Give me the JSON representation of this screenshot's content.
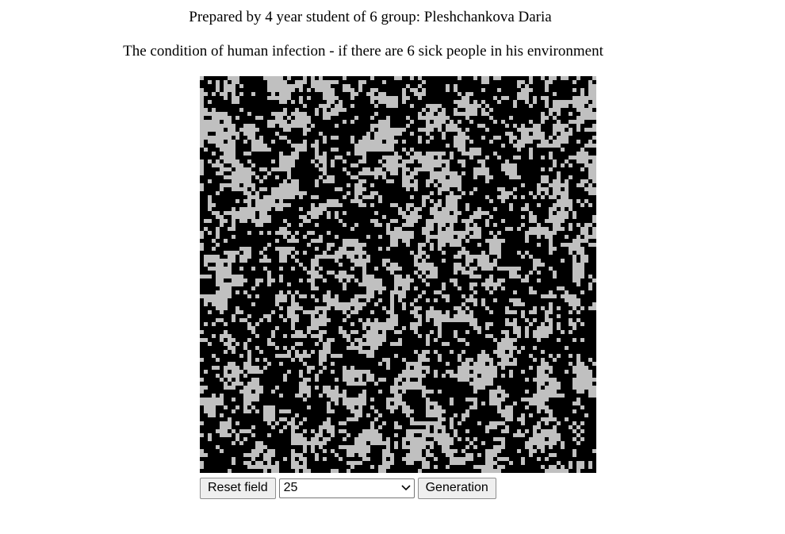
{
  "header": {
    "author": "Prepared by 4 year student of 6 group: Pleshchankova Daria",
    "condition": "The condition of human infection - if there are 6 sick people in his environment"
  },
  "field": {
    "healthy_color": "#c0c0c0",
    "infected_color": "#000000",
    "grid_size": 100
  },
  "controls": {
    "reset_label": "Reset field",
    "selected_value": "25",
    "generation_label": "Generation"
  }
}
